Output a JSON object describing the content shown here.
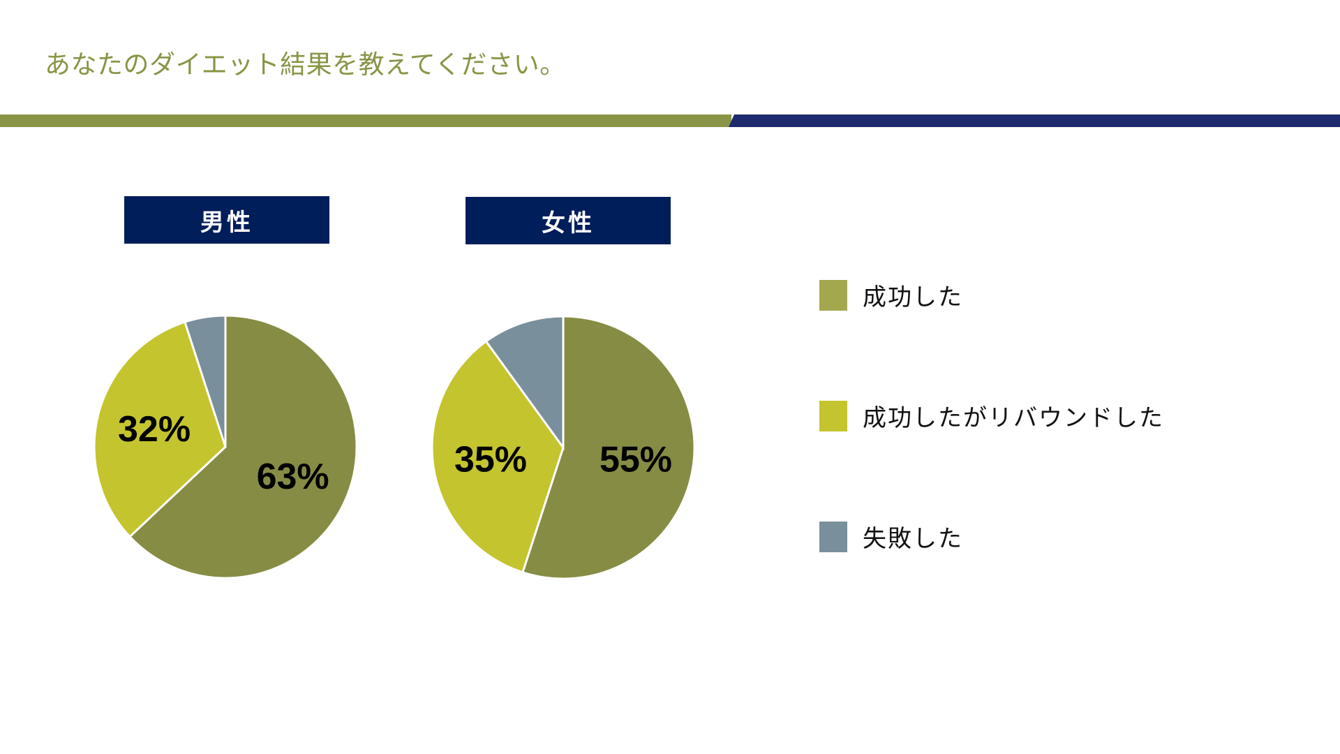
{
  "title": "あなたのダイエット結果を教えてください。",
  "colors": {
    "success": "#878c44",
    "rebound": "#c4c42e",
    "fail": "#7a8f9c",
    "legend_success": "#a3a84f",
    "title": "#8a9446",
    "navy": "#001e5a"
  },
  "legend": [
    {
      "label": "成功した",
      "color": "#a3a84f"
    },
    {
      "label": "成功したがリバウンドした",
      "color": "#c4c42e"
    },
    {
      "label": "失敗した",
      "color": "#7a8f9c"
    }
  ],
  "chart_data": [
    {
      "type": "pie",
      "title": "男性",
      "categories": [
        "成功した",
        "成功したがリバウンドした",
        "失敗した"
      ],
      "values": [
        63,
        32,
        5
      ],
      "data_labels": [
        "63%",
        "32%",
        ""
      ]
    },
    {
      "type": "pie",
      "title": "女性",
      "categories": [
        "成功した",
        "成功したがリバウンドした",
        "失敗した"
      ],
      "values": [
        55,
        35,
        10
      ],
      "data_labels": [
        "55%",
        "35%",
        ""
      ]
    }
  ]
}
